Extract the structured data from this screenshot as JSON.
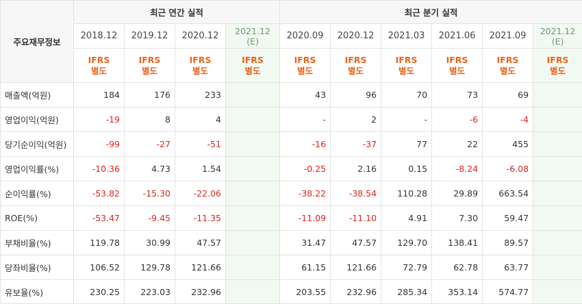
{
  "header": {
    "row_label": "주요재무정보",
    "annual_title": "최근 연간 실적",
    "quarterly_title": "최근 분기 실적",
    "annual_periods": [
      "2018.12",
      "2019.12",
      "2020.12"
    ],
    "annual_estimate": {
      "period": "2021.12",
      "mark": "(E)"
    },
    "quarterly_periods": [
      "2020.09",
      "2020.12",
      "2021.03",
      "2021.06",
      "2021.09"
    ],
    "quarterly_estimate": {
      "period": "2021.12",
      "mark": "(E)"
    },
    "ifrs_line1": "IFRS",
    "ifrs_line2": "별도"
  },
  "colors": {
    "negative": "#d8261f",
    "ifrs": "#e8641b",
    "estimate_bg": "#f2f8f2",
    "header_bg": "#f7f7f7"
  },
  "rows": [
    {
      "label": "매출액(억원)",
      "annual": [
        "184",
        "176",
        "233"
      ],
      "annual_est": "",
      "quarterly": [
        "43",
        "96",
        "70",
        "73",
        "69"
      ],
      "quarterly_est": ""
    },
    {
      "label": "영업이익(억원)",
      "annual": [
        "-19",
        "8",
        "4"
      ],
      "annual_est": "",
      "quarterly": [
        "-",
        "2",
        "-",
        "-6",
        "-4"
      ],
      "quarterly_est": ""
    },
    {
      "label": "당기순이익(억원)",
      "annual": [
        "-99",
        "-27",
        "-51"
      ],
      "annual_est": "",
      "quarterly": [
        "-16",
        "-37",
        "77",
        "22",
        "455"
      ],
      "quarterly_est": ""
    },
    {
      "label": "영업이익률(%)",
      "annual": [
        "-10.36",
        "4.73",
        "1.54"
      ],
      "annual_est": "",
      "quarterly": [
        "-0.25",
        "2.16",
        "0.15",
        "-8.24",
        "-6.08"
      ],
      "quarterly_est": ""
    },
    {
      "label": "순이익률(%)",
      "annual": [
        "-53.82",
        "-15.30",
        "-22.06"
      ],
      "annual_est": "",
      "quarterly": [
        "-38.22",
        "-38.54",
        "110.28",
        "29.89",
        "663.54"
      ],
      "quarterly_est": ""
    },
    {
      "label": "ROE(%)",
      "annual": [
        "-53.47",
        "-9.45",
        "-11.35"
      ],
      "annual_est": "",
      "quarterly": [
        "-11.09",
        "-11.10",
        "4.91",
        "7.30",
        "59.47"
      ],
      "quarterly_est": ""
    },
    {
      "label": "부채비율(%)",
      "annual": [
        "119.78",
        "30.99",
        "47.57"
      ],
      "annual_est": "",
      "quarterly": [
        "31.47",
        "47.57",
        "129.70",
        "138.41",
        "89.57"
      ],
      "quarterly_est": ""
    },
    {
      "label": "당좌비율(%)",
      "annual": [
        "106.52",
        "129.78",
        "121.66"
      ],
      "annual_est": "",
      "quarterly": [
        "61.15",
        "121.66",
        "72.79",
        "62.78",
        "63.77"
      ],
      "quarterly_est": ""
    },
    {
      "label": "유보율(%)",
      "annual": [
        "230.25",
        "223.03",
        "232.96"
      ],
      "annual_est": "",
      "quarterly": [
        "203.55",
        "232.96",
        "285.34",
        "353.14",
        "574.77"
      ],
      "quarterly_est": ""
    }
  ]
}
